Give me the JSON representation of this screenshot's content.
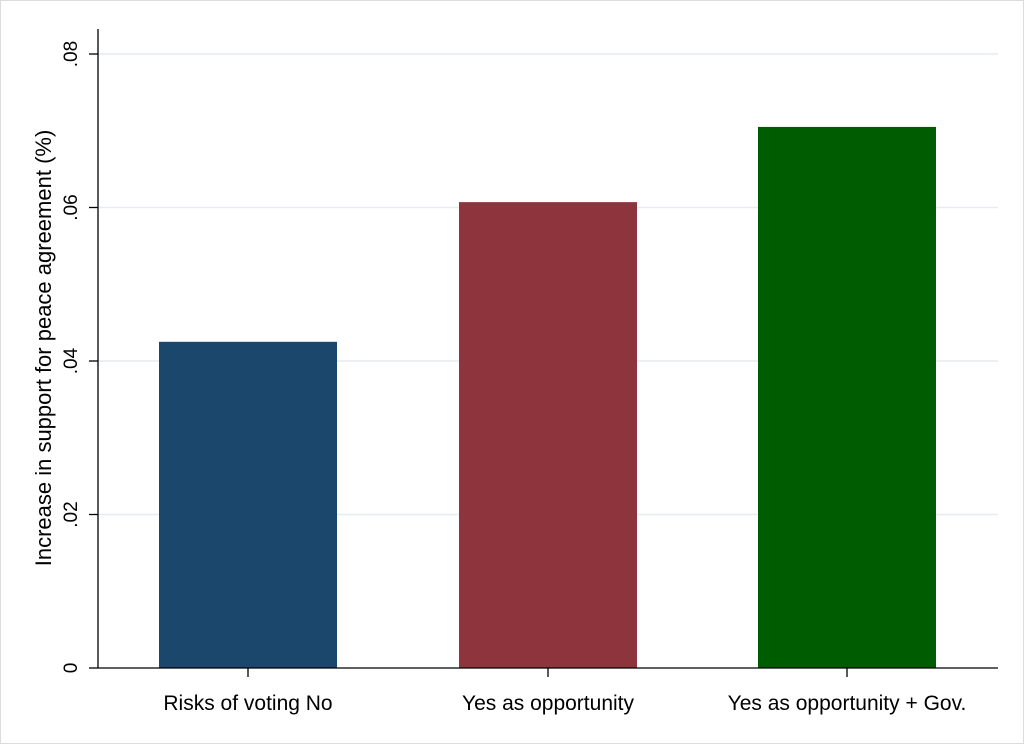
{
  "chart_data": {
    "type": "bar",
    "categories": [
      "Risks of voting No",
      "Yes as opportunity",
      "Yes as opportunity + Gov."
    ],
    "values": [
      0.0425,
      0.0607,
      0.0705
    ],
    "colors": [
      "#1c476c",
      "#8e343c",
      "#005c00"
    ],
    "title": "",
    "xlabel": "",
    "ylabel": "Increase in support for peace agreement (%)",
    "ylim": [
      0,
      0.08
    ],
    "yticks": [
      0,
      0.02,
      0.04,
      0.06,
      0.08
    ],
    "ytick_labels": [
      "0",
      ".02",
      ".04",
      ".06",
      ".08"
    ],
    "grid": true,
    "legend": false
  }
}
